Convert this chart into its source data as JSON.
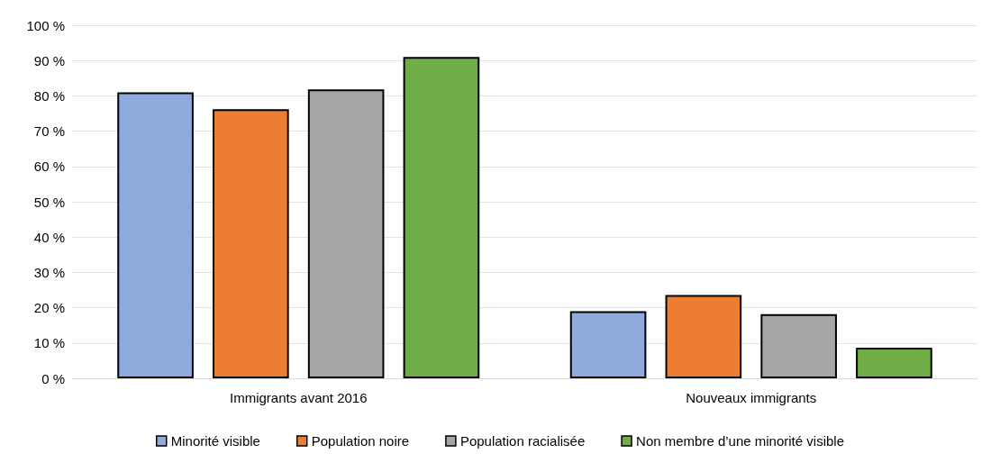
{
  "chart_data": {
    "type": "bar",
    "categories": [
      "Immigrants avant 2016",
      "Nouveaux immigrants"
    ],
    "series": [
      {
        "name": "Minorité visible",
        "color": "#8faadc",
        "values": [
          81.0,
          19.0
        ]
      },
      {
        "name": "Population noire",
        "color": "#ed7d31",
        "values": [
          76.2,
          23.6
        ]
      },
      {
        "name": "Population racialisée",
        "color": "#a6a6a6",
        "values": [
          81.8,
          18.2
        ]
      },
      {
        "name": "Non membre d’une minorité visible",
        "color": "#70ad47",
        "values": [
          91.0,
          8.7
        ]
      }
    ],
    "ylim": [
      0,
      100
    ],
    "yticks": [
      {
        "value": 0,
        "label": "0 %"
      },
      {
        "value": 10,
        "label": "10 %"
      },
      {
        "value": 20,
        "label": "20 %"
      },
      {
        "value": 30,
        "label": "30 %"
      },
      {
        "value": 40,
        "label": "40 %"
      },
      {
        "value": 50,
        "label": "50 %"
      },
      {
        "value": 60,
        "label": "60 %"
      },
      {
        "value": 70,
        "label": "70 %"
      },
      {
        "value": 80,
        "label": "80 %"
      },
      {
        "value": 90,
        "label": "90 %"
      },
      {
        "value": 100,
        "label": "100 %"
      }
    ],
    "grid": "y",
    "legend": "bottom"
  }
}
